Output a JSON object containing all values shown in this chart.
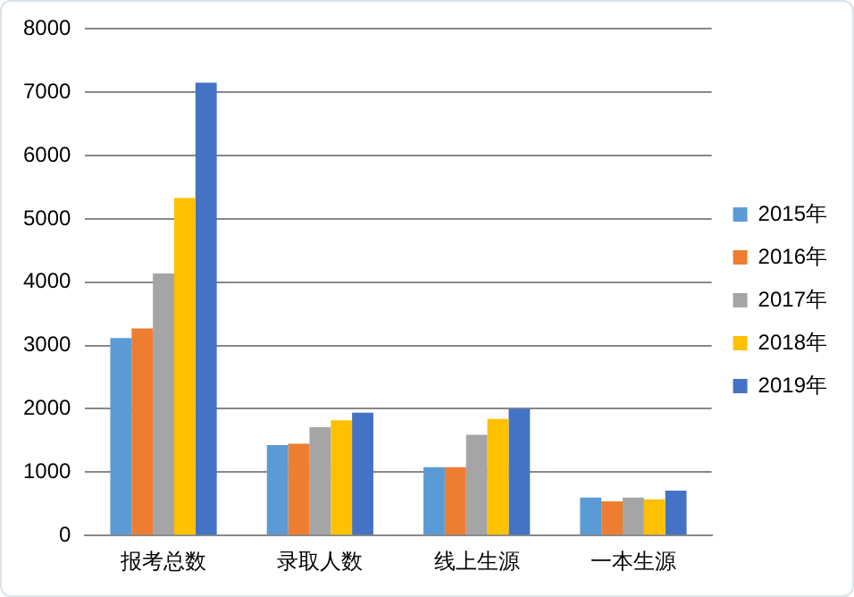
{
  "chart_data": {
    "type": "bar",
    "categories": [
      "报考总数",
      "录取人数",
      "线上生源",
      "一本生源"
    ],
    "series": [
      {
        "name": "2015年",
        "color": "#5b9bd5",
        "values": [
          3120,
          1430,
          1080,
          600
        ]
      },
      {
        "name": "2016年",
        "color": "#ed7d31",
        "values": [
          3270,
          1450,
          1080,
          540
        ]
      },
      {
        "name": "2017年",
        "color": "#a5a5a5",
        "values": [
          4140,
          1710,
          1590,
          600
        ]
      },
      {
        "name": "2018年",
        "color": "#ffc000",
        "values": [
          5330,
          1820,
          1840,
          570
        ]
      },
      {
        "name": "2019年",
        "color": "#4472c4",
        "values": [
          7150,
          1940,
          2000,
          710
        ]
      }
    ],
    "ylim": [
      0,
      8000
    ],
    "yticks": [
      0,
      1000,
      2000,
      3000,
      4000,
      5000,
      6000,
      7000,
      8000
    ],
    "grid": "y",
    "legend": "right"
  }
}
